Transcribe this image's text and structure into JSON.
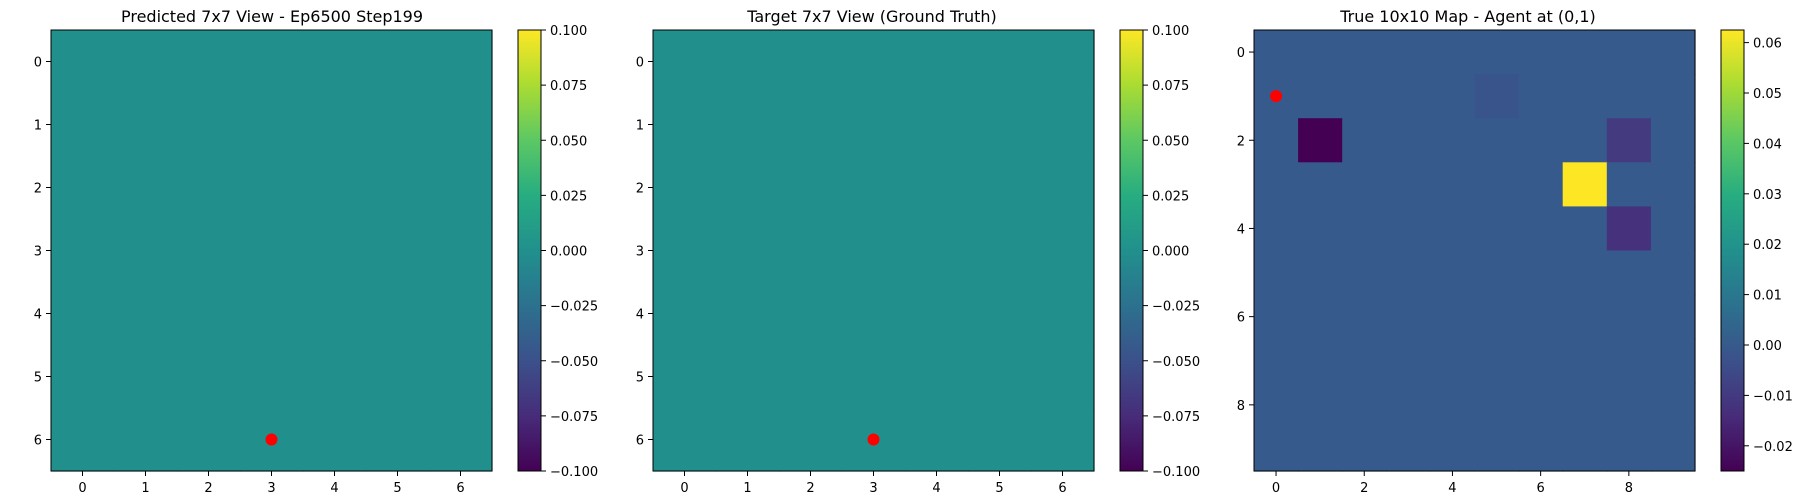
{
  "chart_data": [
    {
      "type": "heatmap",
      "title": "Predicted 7x7 View - Ep6500 Step199",
      "xlabel": "",
      "ylabel": "",
      "grid": false,
      "rows": 7,
      "cols": 7,
      "x_ticks": [
        0,
        1,
        2,
        3,
        4,
        5,
        6
      ],
      "y_ticks": [
        0,
        1,
        2,
        3,
        4,
        5,
        6
      ],
      "values": [
        [
          0,
          0,
          0,
          0,
          0,
          0,
          0
        ],
        [
          0,
          0,
          0,
          0,
          0,
          0,
          0
        ],
        [
          0,
          0,
          0,
          0,
          0,
          0,
          0
        ],
        [
          0,
          0,
          0,
          0,
          0,
          0,
          0
        ],
        [
          0,
          0,
          0,
          0,
          0,
          0,
          0
        ],
        [
          0,
          0,
          0,
          0,
          0,
          0,
          0
        ],
        [
          0,
          0,
          0,
          0,
          0,
          0,
          0
        ]
      ],
      "vmin": -0.1,
      "vmax": 0.1,
      "colorbar_ticks": [
        0.1,
        0.075,
        0.05,
        0.025,
        0.0,
        -0.025,
        -0.05,
        -0.075,
        -0.1
      ],
      "colorbar_labels": [
        "0.100",
        "0.075",
        "0.050",
        "0.025",
        "0.000",
        "−0.025",
        "−0.050",
        "−0.075",
        "−0.100"
      ],
      "marker": {
        "x": 3,
        "y": 6,
        "color": "#ff0000"
      }
    },
    {
      "type": "heatmap",
      "title": "Target 7x7 View (Ground Truth)",
      "xlabel": "",
      "ylabel": "",
      "grid": false,
      "rows": 7,
      "cols": 7,
      "x_ticks": [
        0,
        1,
        2,
        3,
        4,
        5,
        6
      ],
      "y_ticks": [
        0,
        1,
        2,
        3,
        4,
        5,
        6
      ],
      "values": [
        [
          0,
          0,
          0,
          0,
          0,
          0,
          0
        ],
        [
          0,
          0,
          0,
          0,
          0,
          0,
          0
        ],
        [
          0,
          0,
          0,
          0,
          0,
          0,
          0
        ],
        [
          0,
          0,
          0,
          0,
          0,
          0,
          0
        ],
        [
          0,
          0,
          0,
          0,
          0,
          0,
          0
        ],
        [
          0,
          0,
          0,
          0,
          0,
          0,
          0
        ],
        [
          0,
          0,
          0,
          0,
          0,
          0,
          0
        ]
      ],
      "vmin": -0.1,
      "vmax": 0.1,
      "colorbar_ticks": [
        0.1,
        0.075,
        0.05,
        0.025,
        0.0,
        -0.025,
        -0.05,
        -0.075,
        -0.1
      ],
      "colorbar_labels": [
        "0.100",
        "0.075",
        "0.050",
        "0.025",
        "0.000",
        "−0.025",
        "−0.050",
        "−0.075",
        "−0.100"
      ],
      "marker": {
        "x": 3,
        "y": 6,
        "color": "#ff0000"
      }
    },
    {
      "type": "heatmap",
      "title": "True 10x10 Map - Agent at (0,1)",
      "xlabel": "",
      "ylabel": "",
      "grid": false,
      "rows": 10,
      "cols": 10,
      "x_ticks": [
        0,
        2,
        4,
        6,
        8
      ],
      "y_ticks": [
        0,
        2,
        4,
        6,
        8
      ],
      "values": [
        [
          0,
          0,
          0,
          0,
          0,
          0,
          0,
          0,
          0,
          0
        ],
        [
          0,
          0,
          0,
          0,
          0,
          -0.002,
          0,
          0,
          0,
          0
        ],
        [
          0,
          -0.025,
          0,
          0,
          0,
          0,
          0,
          0,
          -0.01,
          0
        ],
        [
          0,
          0,
          0,
          0,
          0,
          0,
          0,
          0.0625,
          0,
          0
        ],
        [
          0,
          0,
          0,
          0,
          0,
          0,
          0,
          0,
          -0.0125,
          0
        ],
        [
          0,
          0,
          0,
          0,
          0,
          0,
          0,
          0,
          0,
          0
        ],
        [
          0,
          0,
          0,
          0,
          0,
          0,
          0,
          0,
          0,
          0
        ],
        [
          0,
          0,
          0,
          0,
          0,
          0,
          0,
          0,
          0,
          0
        ],
        [
          0,
          0,
          0,
          0,
          0,
          0,
          0,
          0,
          0,
          0
        ],
        [
          0,
          0,
          0,
          0,
          0,
          0,
          0,
          0,
          0,
          0
        ]
      ],
      "vmin": -0.025,
      "vmax": 0.0625,
      "colorbar_ticks": [
        0.06,
        0.05,
        0.04,
        0.03,
        0.02,
        0.01,
        0.0,
        -0.01,
        -0.02
      ],
      "colorbar_labels": [
        "0.06",
        "0.05",
        "0.04",
        "0.03",
        "0.02",
        "0.01",
        "0.00",
        "−0.01",
        "−0.02"
      ],
      "marker": {
        "x": 0,
        "y": 1,
        "color": "#ff0000"
      }
    }
  ]
}
